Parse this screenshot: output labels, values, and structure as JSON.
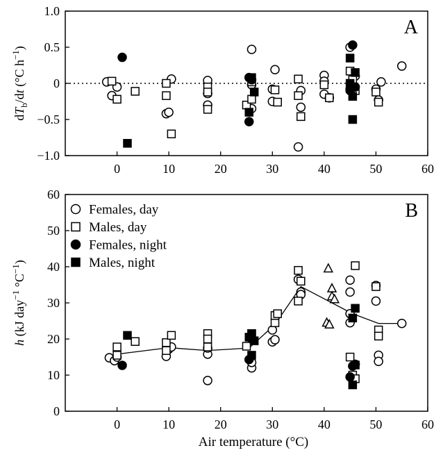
{
  "figure": {
    "xlabel": "Air temperature (°C)"
  },
  "chart_data": [
    {
      "type": "scatter",
      "panel_label": "A",
      "ylabel_parts": [
        "d",
        "T",
        "b",
        "/d",
        "t",
        " (°C h",
        "−1",
        ")"
      ],
      "xlim": [
        -10,
        60
      ],
      "ylim": [
        -1.0,
        1.0
      ],
      "x_ticks": [
        0,
        10,
        20,
        30,
        40,
        50,
        60
      ],
      "y_ticks": [
        -1.0,
        -0.5,
        0,
        0.5,
        1.0
      ],
      "y_tick_labels": [
        "−1.0",
        "−0.5",
        "0",
        "0.5",
        "1.0"
      ],
      "reference_line": {
        "y": 0,
        "style": "dotted"
      },
      "grid": false,
      "series": [
        {
          "marker": "circle-open",
          "points": [
            [
              -2,
              0.02
            ],
            [
              -1,
              -0.17
            ],
            [
              0,
              -0.05
            ],
            [
              9.5,
              -0.42
            ],
            [
              10,
              -0.4
            ],
            [
              10.5,
              0.06
            ],
            [
              17.5,
              0.04
            ],
            [
              17.5,
              -0.14
            ],
            [
              17.5,
              -0.3
            ],
            [
              26,
              0.47
            ],
            [
              26,
              -0.02
            ],
            [
              26,
              -0.35
            ],
            [
              30,
              -0.08
            ],
            [
              30,
              -0.25
            ],
            [
              30.5,
              0.19
            ],
            [
              35,
              -0.88
            ],
            [
              35.5,
              -0.33
            ],
            [
              35.5,
              -0.1
            ],
            [
              40,
              0.11
            ],
            [
              40,
              0.03
            ],
            [
              40,
              -0.15
            ],
            [
              41,
              -0.2
            ],
            [
              45,
              0.5
            ],
            [
              45,
              -0.08
            ],
            [
              46,
              0.1
            ],
            [
              50,
              -0.08
            ],
            [
              50.5,
              -0.23
            ],
            [
              51,
              0.02
            ],
            [
              55,
              0.24
            ]
          ]
        },
        {
          "marker": "square-open",
          "points": [
            [
              -1,
              0.03
            ],
            [
              0,
              -0.22
            ],
            [
              3.5,
              -0.11
            ],
            [
              9.5,
              0.0
            ],
            [
              9.5,
              -0.17
            ],
            [
              10.5,
              -0.7
            ],
            [
              17.5,
              -0.05
            ],
            [
              17.5,
              -0.12
            ],
            [
              17.5,
              -0.36
            ],
            [
              25,
              -0.3
            ],
            [
              26,
              -0.22
            ],
            [
              26,
              0.02
            ],
            [
              30.5,
              -0.09
            ],
            [
              31,
              -0.26
            ],
            [
              35,
              0.06
            ],
            [
              35,
              -0.17
            ],
            [
              35.5,
              -0.46
            ],
            [
              40,
              -0.02
            ],
            [
              41,
              -0.2
            ],
            [
              45,
              0.17
            ],
            [
              45.5,
              0.05
            ],
            [
              46,
              -0.1
            ],
            [
              50,
              -0.12
            ],
            [
              50.5,
              -0.26
            ]
          ]
        },
        {
          "marker": "circle-filled",
          "points": [
            [
              1,
              0.36
            ],
            [
              25.5,
              -0.53
            ],
            [
              25.5,
              0.08
            ],
            [
              26,
              0.05
            ],
            [
              45,
              -0.1
            ],
            [
              45.5,
              0.53
            ],
            [
              46,
              -0.05
            ]
          ]
        },
        {
          "marker": "square-filled",
          "points": [
            [
              2,
              -0.83
            ],
            [
              25.5,
              -0.4
            ],
            [
              26,
              0.08
            ],
            [
              26.5,
              -0.12
            ],
            [
              45,
              0.35
            ],
            [
              45,
              0.0
            ],
            [
              45.5,
              -0.18
            ],
            [
              45.5,
              -0.5
            ],
            [
              46,
              0.15
            ]
          ]
        }
      ]
    },
    {
      "type": "scatter",
      "panel_label": "B",
      "ylabel_parts": [
        "h",
        " (kJ day",
        "−1",
        " °C",
        "−1",
        ")"
      ],
      "xlim": [
        -10,
        60
      ],
      "ylim": [
        0,
        60
      ],
      "x_ticks": [
        0,
        10,
        20,
        30,
        40,
        50,
        60
      ],
      "y_ticks": [
        0,
        10,
        20,
        30,
        40,
        50,
        60
      ],
      "y_tick_labels": [
        "0",
        "10",
        "20",
        "30",
        "40",
        "50",
        "60"
      ],
      "grid": false,
      "legend": {
        "position": "top-left",
        "entries": [
          {
            "label": "Females, day",
            "marker": "circle-open"
          },
          {
            "label": "Males, day",
            "marker": "square-open"
          },
          {
            "label": "Females, night",
            "marker": "circle-filled"
          },
          {
            "label": "Males, night",
            "marker": "square-filled"
          }
        ]
      },
      "series": [
        {
          "marker": "circle-open",
          "points": [
            [
              -1.5,
              14.8
            ],
            [
              -0.5,
              14.0
            ],
            [
              0,
              15.0
            ],
            [
              9.5,
              15.2
            ],
            [
              10,
              17.2
            ],
            [
              10.5,
              17.8
            ],
            [
              17.5,
              8.5
            ],
            [
              17.5,
              15.8
            ],
            [
              17.5,
              17.5
            ],
            [
              26,
              12.0
            ],
            [
              26,
              13.5
            ],
            [
              30,
              19.2
            ],
            [
              30.5,
              19.8
            ],
            [
              30,
              22.5
            ],
            [
              35,
              36.5
            ],
            [
              35.5,
              33.0
            ],
            [
              35.5,
              32.3
            ],
            [
              45,
              36.3
            ],
            [
              45,
              33.0
            ],
            [
              45,
              24.5
            ],
            [
              45,
              27.0
            ],
            [
              50,
              34.8
            ],
            [
              50,
              30.5
            ],
            [
              50.5,
              15.5
            ],
            [
              50.5,
              13.8
            ],
            [
              55,
              24.3
            ]
          ]
        },
        {
          "marker": "square-open",
          "points": [
            [
              0,
              15.5
            ],
            [
              0,
              17.8
            ],
            [
              3.5,
              19.3
            ],
            [
              9.5,
              16.8
            ],
            [
              9.5,
              19.0
            ],
            [
              10.5,
              21.0
            ],
            [
              17.5,
              21.5
            ],
            [
              17.5,
              20.0
            ],
            [
              17.5,
              17.8
            ],
            [
              25,
              18.0
            ],
            [
              26,
              21.5
            ],
            [
              30.5,
              24.5
            ],
            [
              30.5,
              26.5
            ],
            [
              31,
              27.0
            ],
            [
              35,
              39.0
            ],
            [
              35,
              30.5
            ],
            [
              35.5,
              36.0
            ],
            [
              45,
              15.0
            ],
            [
              45.5,
              10.0
            ],
            [
              46,
              9.0
            ],
            [
              46,
              40.3
            ],
            [
              50,
              34.5
            ],
            [
              50.5,
              22.5
            ],
            [
              50.5,
              20.8
            ]
          ]
        },
        {
          "marker": "triangle-open",
          "points": [
            [
              40.8,
              39.5
            ],
            [
              41.5,
              34.0
            ],
            [
              41.5,
              31.8
            ],
            [
              42,
              31.0
            ],
            [
              40.5,
              24.5
            ],
            [
              41,
              24.0
            ]
          ]
        },
        {
          "marker": "circle-filled",
          "points": [
            [
              1,
              12.7
            ],
            [
              25.5,
              14.3
            ],
            [
              26,
              20.0
            ],
            [
              45,
              9.5
            ],
            [
              45.5,
              12.5
            ],
            [
              46,
              13.0
            ]
          ]
        },
        {
          "marker": "square-filled",
          "points": [
            [
              2,
              21.0
            ],
            [
              25.5,
              20.5
            ],
            [
              26,
              21.5
            ],
            [
              26.5,
              19.5
            ],
            [
              26,
              15.5
            ],
            [
              45.5,
              25.8
            ],
            [
              45.5,
              7.3
            ],
            [
              46,
              28.5
            ],
            [
              46,
              12.8
            ]
          ]
        }
      ],
      "trend_line": [
        [
          0,
          15.8
        ],
        [
          10,
          17.6
        ],
        [
          17.5,
          16.8
        ],
        [
          25.5,
          17.5
        ],
        [
          30.5,
          24.0
        ],
        [
          35.5,
          34.5
        ],
        [
          45.5,
          27.0
        ],
        [
          50.5,
          24.3
        ],
        [
          55,
          24.3
        ]
      ]
    }
  ]
}
